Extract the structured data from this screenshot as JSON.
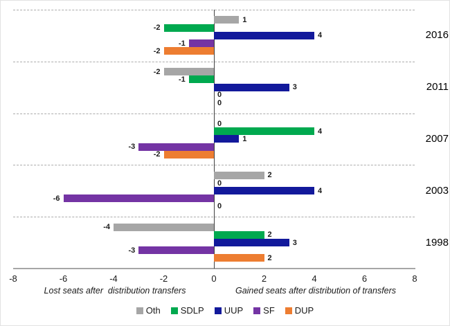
{
  "chart_data": {
    "type": "bar",
    "orientation": "horizontal-diverging",
    "groups": [
      "2016",
      "2011",
      "2007",
      "2003",
      "1998"
    ],
    "series": [
      {
        "name": "Oth",
        "color": "#a6a6a6",
        "values": [
          1,
          -2,
          0,
          2,
          -4
        ]
      },
      {
        "name": "SDLP",
        "color": "#00a94f",
        "values": [
          -2,
          -1,
          4,
          0,
          2
        ]
      },
      {
        "name": "UUP",
        "color": "#12199b",
        "values": [
          4,
          3,
          1,
          4,
          3
        ]
      },
      {
        "name": "SF",
        "color": "#7434a4",
        "values": [
          -1,
          0,
          -3,
          -6,
          -3
        ]
      },
      {
        "name": "DUP",
        "color": "#ed7d31",
        "values": [
          -2,
          0,
          -2,
          0,
          2
        ]
      }
    ],
    "xlim": [
      -8,
      8
    ],
    "x_ticks": [
      -8,
      -6,
      -4,
      -2,
      0,
      2,
      4,
      6,
      8
    ],
    "xlabel_left": "Lost seats after  distribution transfers",
    "xlabel_right": "Gained seats after distribution of transfers",
    "legend": [
      "Oth",
      "SDLP",
      "UUP",
      "SF",
      "DUP"
    ],
    "legend_position": "bottom",
    "grid": "dashed horizontal group separators",
    "axis_color": "#a6a6a6",
    "zero_line_color": "#404040"
  }
}
